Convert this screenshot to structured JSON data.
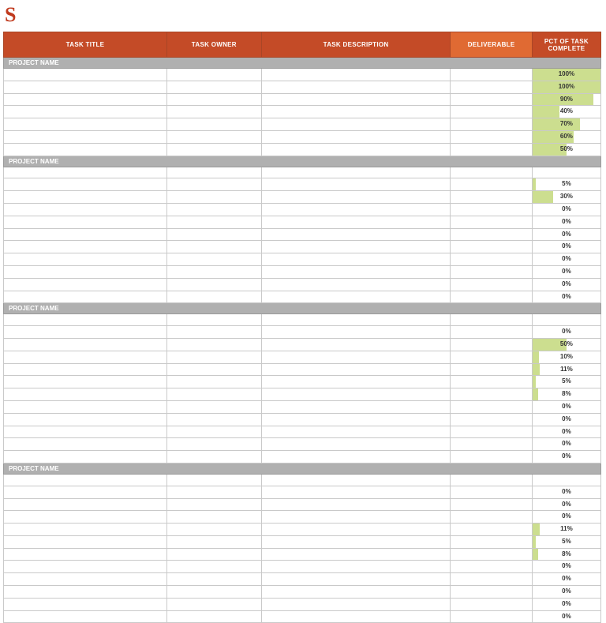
{
  "title_char": "S",
  "header": {
    "bg_normal": "#c44b27",
    "bg_deliverable": "#e06a33",
    "columns": [
      {
        "key": "title",
        "label": "TASK TITLE"
      },
      {
        "key": "owner",
        "label": "TASK OWNER"
      },
      {
        "key": "desc",
        "label": "TASK DESCRIPTION"
      },
      {
        "key": "deliver",
        "label": "DELIVERABLE"
      },
      {
        "key": "pct",
        "label": "PCT OF TASK COMPLETE"
      }
    ]
  },
  "pct_bar_color": "#ccde8f",
  "sections": [
    {
      "label": "PROJECT NAME",
      "leading_gap": false,
      "rows": [
        {
          "pct": 100
        },
        {
          "pct": 100
        },
        {
          "pct": 90
        },
        {
          "pct": 40
        },
        {
          "pct": 70
        },
        {
          "pct": 60
        },
        {
          "pct": 50
        }
      ]
    },
    {
      "label": "PROJECT NAME",
      "leading_gap": true,
      "rows": [
        {
          "pct": 5
        },
        {
          "pct": 30
        },
        {
          "pct": 0
        },
        {
          "pct": 0
        },
        {
          "pct": 0
        },
        {
          "pct": 0
        },
        {
          "pct": 0
        },
        {
          "pct": 0
        },
        {
          "pct": 0
        },
        {
          "pct": 0
        }
      ]
    },
    {
      "label": "PROJECT NAME",
      "leading_gap": true,
      "rows": [
        {
          "pct": 0
        },
        {
          "pct": 50
        },
        {
          "pct": 10
        },
        {
          "pct": 11
        },
        {
          "pct": 5
        },
        {
          "pct": 8
        },
        {
          "pct": 0
        },
        {
          "pct": 0
        },
        {
          "pct": 0
        },
        {
          "pct": 0
        },
        {
          "pct": 0
        }
      ]
    },
    {
      "label": "PROJECT NAME",
      "leading_gap": true,
      "rows": [
        {
          "pct": 0
        },
        {
          "pct": 0
        },
        {
          "pct": 0
        },
        {
          "pct": 11
        },
        {
          "pct": 5
        },
        {
          "pct": 8
        },
        {
          "pct": 0
        },
        {
          "pct": 0
        },
        {
          "pct": 0
        },
        {
          "pct": 0
        },
        {
          "pct": 0
        }
      ]
    }
  ]
}
